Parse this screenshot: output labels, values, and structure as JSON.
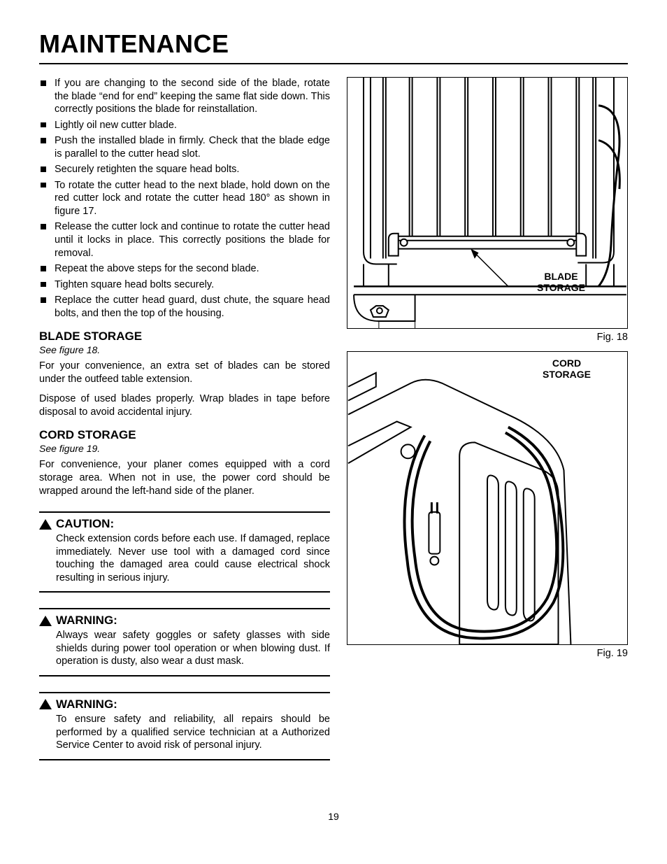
{
  "page": {
    "title": "Maintenance",
    "number": "19"
  },
  "bullets": [
    "If you are changing to the second side of the blade, rotate the blade “end for end” keeping the same flat side down. This correctly positions the blade for reinstallation.",
    "Lightly oil new cutter blade.",
    "Push the installed blade in firmly. Check that the blade edge is parallel to the cutter head slot.",
    "Securely retighten the square head bolts.",
    "To rotate the cutter head to the next blade, hold down on the red cutter lock and rotate the cutter head 180° as shown in figure 17.",
    "Release the cutter lock and continue to rotate the cutter head until it locks in place. This correctly positions the blade for removal.",
    "Repeat the above steps for the second blade.",
    "Tighten square head bolts securely.",
    "Replace the cutter head guard, dust chute, the square head bolts, and then the top of the housing."
  ],
  "sections": {
    "blade_storage": {
      "heading": "BLADE STORAGE",
      "see": "See figure 18.",
      "paras": [
        "For your convenience, an extra set of blades can be stored under the outfeed table extension.",
        "Dispose of used blades properly. Wrap blades in tape before disposal to avoid accidental injury."
      ]
    },
    "cord_storage": {
      "heading": "CORD STORAGE",
      "see": "See figure 19.",
      "paras": [
        "For convenience, your planer comes equipped with a cord storage area.  When not in use, the power cord should be wrapped around the left-hand side of the planer."
      ]
    }
  },
  "notices": [
    {
      "label": "CAUTION:",
      "body": "Check extension cords before each use. If damaged, replace immediately. Never use tool with a damaged cord since touching the damaged area could cause electrical shock resulting in serious injury."
    },
    {
      "label": "WARNING:",
      "body": "Always wear safety goggles or safety glasses with side shields during power tool operation or when blowing dust. If operation is dusty, also wear a dust mask."
    },
    {
      "label": "WARNING:",
      "body": "To ensure safety and reliability, all repairs should be performed by a qualified service technician at a Authorized Service Center to avoid risk of personal injury."
    }
  ],
  "figures": {
    "fig18": {
      "label": "BLADE\nSTORAGE",
      "caption": "Fig. 18"
    },
    "fig19": {
      "label": "CORD\nSTORAGE",
      "caption": "Fig. 19"
    }
  },
  "style": {
    "title_fontsize": 36,
    "body_fontsize": 14.5,
    "heading_fontsize": 17,
    "line_color": "#000000",
    "background": "#ffffff"
  }
}
